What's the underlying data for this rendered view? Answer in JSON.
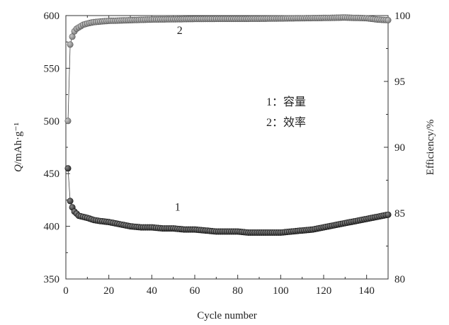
{
  "chart_data": {
    "type": "scatter",
    "xlabel": "Cycle number",
    "ylabel_left": "Q/mAh·g⁻¹",
    "ylabel_right": "Efficiency/%",
    "xlim": [
      0,
      150
    ],
    "ylim_left": [
      350,
      600
    ],
    "ylim_right": [
      80,
      100
    ],
    "xticks": [
      0,
      20,
      40,
      60,
      80,
      100,
      120,
      140
    ],
    "yticks_left": [
      350,
      400,
      450,
      500,
      550,
      600
    ],
    "yticks_right": [
      80,
      85,
      90,
      95,
      100
    ],
    "legend": [
      "1：容量",
      "2：效率"
    ],
    "annotations": [
      {
        "text": "2",
        "x": 53,
        "y_right": 98.6
      },
      {
        "text": "1",
        "x": 52,
        "y_left": 415
      }
    ],
    "series": [
      {
        "axis": "left",
        "marker_color": "#2a2a2a",
        "points": [
          [
            1,
            455
          ],
          [
            2,
            424
          ],
          [
            3,
            418
          ],
          [
            4,
            414
          ],
          [
            5,
            412
          ],
          [
            6,
            410
          ],
          [
            8,
            409
          ],
          [
            10,
            408
          ],
          [
            13,
            406
          ],
          [
            16,
            405
          ],
          [
            20,
            404
          ],
          [
            25,
            402
          ],
          [
            30,
            400
          ],
          [
            35,
            399
          ],
          [
            40,
            399
          ],
          [
            45,
            398
          ],
          [
            50,
            398
          ],
          [
            55,
            397
          ],
          [
            60,
            397
          ],
          [
            65,
            396
          ],
          [
            70,
            395
          ],
          [
            75,
            395
          ],
          [
            80,
            395
          ],
          [
            85,
            394
          ],
          [
            90,
            394
          ],
          [
            95,
            394
          ],
          [
            100,
            394
          ],
          [
            105,
            395
          ],
          [
            110,
            396
          ],
          [
            115,
            397
          ],
          [
            120,
            399
          ],
          [
            125,
            401
          ],
          [
            130,
            403
          ],
          [
            135,
            405
          ],
          [
            140,
            407
          ],
          [
            145,
            409
          ],
          [
            150,
            411
          ]
        ]
      },
      {
        "axis": "right",
        "marker_color": "#777777",
        "points": [
          [
            1,
            92.0
          ],
          [
            2,
            97.8
          ],
          [
            3,
            98.4
          ],
          [
            4,
            98.8
          ],
          [
            5,
            99.0
          ],
          [
            6,
            99.1
          ],
          [
            8,
            99.3
          ],
          [
            10,
            99.4
          ],
          [
            13,
            99.5
          ],
          [
            16,
            99.55
          ],
          [
            20,
            99.6
          ],
          [
            30,
            99.65
          ],
          [
            40,
            99.7
          ],
          [
            50,
            99.72
          ],
          [
            60,
            99.74
          ],
          [
            70,
            99.75
          ],
          [
            80,
            99.75
          ],
          [
            90,
            99.76
          ],
          [
            100,
            99.78
          ],
          [
            110,
            99.8
          ],
          [
            120,
            99.82
          ],
          [
            130,
            99.85
          ],
          [
            140,
            99.8
          ],
          [
            145,
            99.7
          ],
          [
            150,
            99.65
          ]
        ]
      }
    ]
  }
}
